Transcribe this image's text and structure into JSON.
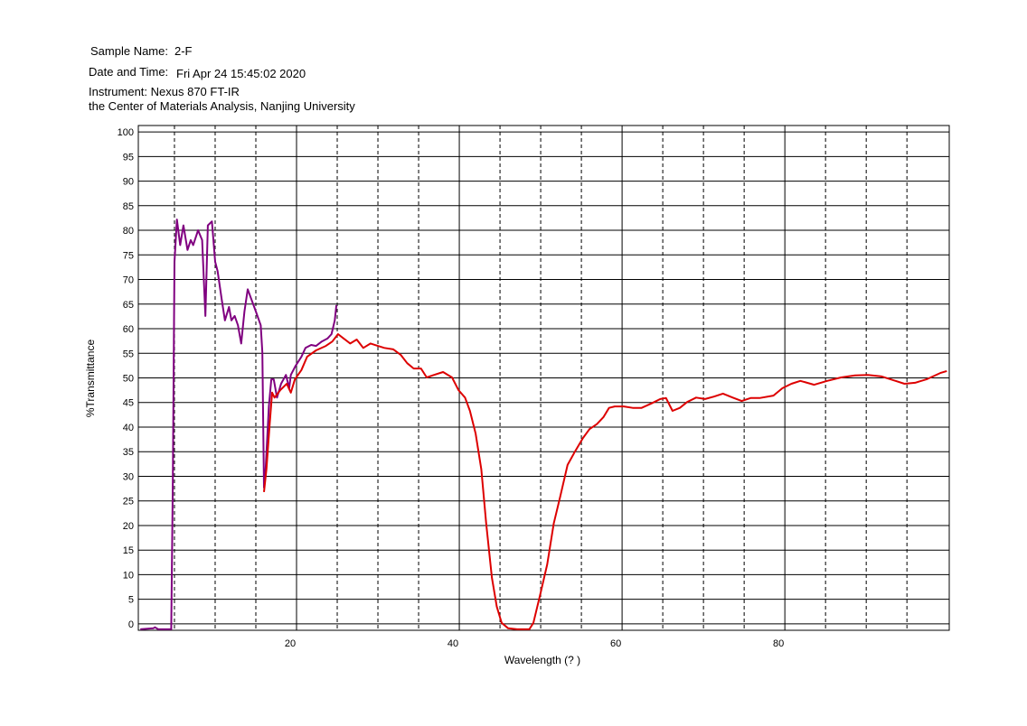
{
  "chart_data": {
    "type": "line",
    "header": {
      "sample_label": "Sample Name:",
      "sample": "2-F",
      "date_label": "Date and Time:",
      "date": "Fri Apr 24 15:45:02 2020",
      "instrument": "Instrument: Nexus 870 FT-IR",
      "institution": "the Center of Materials Analysis, Nanjing University"
    },
    "x_label": "Wavelength (?  )",
    "y_label": "%Transmittance",
    "xlim": [
      0.56,
      100.2
    ],
    "ylim": [
      -1.3,
      101.3
    ],
    "xticks": [
      20,
      40,
      60,
      80
    ],
    "x_minor_ticks": [
      5,
      10,
      15,
      25,
      30,
      35,
      45,
      50,
      55,
      65,
      70,
      75,
      85,
      90,
      95
    ],
    "yticks": [
      0,
      5,
      10,
      15,
      20,
      25,
      30,
      35,
      40,
      45,
      50,
      55,
      60,
      65,
      70,
      75,
      80,
      85,
      90,
      95,
      100
    ],
    "series": [
      {
        "color": "#800080",
        "x": [
          0.8,
          2.4,
          2.6,
          3,
          4.6,
          4.8,
          5,
          5.3,
          5.7,
          6.1,
          6.6,
          7,
          7.3,
          7.9,
          8.4,
          8.8,
          9.1,
          9.6,
          10,
          10.3,
          10.8,
          11.2,
          11.7,
          12,
          12.4,
          12.8,
          13.2,
          13.6,
          14,
          14.4,
          15,
          15.6,
          15.8,
          16,
          16.2,
          16.6,
          16.9,
          17.2,
          17.6,
          18.1,
          18.7,
          19.1,
          19.3,
          19.9,
          20.6,
          21.1,
          21.8,
          22.4,
          23.1,
          23.8,
          24.3,
          24.7,
          24.9
        ],
        "values": [
          -1.1,
          -0.9,
          -0.7,
          -1.1,
          -1.1,
          29.5,
          73.6,
          82.2,
          77,
          81,
          76,
          78,
          77,
          80,
          78,
          62.6,
          81,
          81.8,
          73.6,
          71.7,
          66,
          61.7,
          64.4,
          61.7,
          62.6,
          60.7,
          57,
          63.5,
          68,
          66.2,
          63.5,
          60.7,
          55.2,
          27.7,
          31.4,
          44.2,
          49.7,
          49.7,
          46,
          48.8,
          50.6,
          47.9,
          50.6,
          52.5,
          54.3,
          56.1,
          56.7,
          56.5,
          57.4,
          58,
          58.9,
          61.7,
          64.8
        ]
      },
      {
        "color": "#dd0000",
        "x": [
          16,
          16.3,
          16.7,
          17,
          17.3,
          18,
          18.8,
          19.3,
          19.8,
          20.6,
          21.3,
          22.4,
          23.6,
          24.4,
          25.1,
          25.8,
          26.6,
          27.4,
          28.2,
          29.1,
          30,
          30.8,
          31.9,
          32.8,
          33.6,
          34.4,
          35.3,
          36,
          36.9,
          38,
          39.1,
          39.9,
          40.7,
          41.3,
          42,
          42.7,
          43.3,
          44,
          44.6,
          45.2,
          46,
          47.1,
          48.6,
          49.1,
          49.9,
          50.8,
          51.6,
          52.4,
          53.3,
          54.2,
          55.2,
          56,
          56.9,
          57.7,
          58.4,
          59.1,
          60.2,
          61.3,
          62.4,
          63.6,
          64.7,
          65.4,
          66.2,
          67.1,
          68,
          69.1,
          70.2,
          71.3,
          72.4,
          73.6,
          74.7,
          75.8,
          76.9,
          78.6,
          79.7,
          80.8,
          81.9,
          83.6,
          85.2,
          86.9,
          88.6,
          90.2,
          91.9,
          93.6,
          94.7,
          96,
          97.4,
          99.1,
          99.9
        ],
        "values": [
          26.8,
          31.4,
          40.6,
          47,
          46,
          47.5,
          48.8,
          47,
          49.7,
          51.6,
          54.3,
          55.6,
          56.5,
          57.4,
          58.9,
          58,
          57,
          57.8,
          56.1,
          57,
          56.5,
          56.1,
          55.8,
          54.7,
          53,
          51.9,
          51.9,
          50.1,
          50.6,
          51.2,
          50.1,
          47.5,
          46,
          43.3,
          38.7,
          31.4,
          20.4,
          9.4,
          3.5,
          0.2,
          -0.9,
          -1.1,
          -1.1,
          0.2,
          5.7,
          12.1,
          20.4,
          25.9,
          32.3,
          35,
          37.8,
          39.6,
          40.6,
          42,
          43.9,
          44.2,
          44.2,
          43.9,
          43.9,
          44.8,
          45.7,
          45.9,
          43.3,
          43.9,
          45.1,
          46,
          45.7,
          46.2,
          46.8,
          46,
          45.3,
          45.9,
          45.9,
          46.4,
          47.9,
          48.8,
          49.4,
          48.6,
          49.4,
          50.1,
          50.5,
          50.6,
          50.3,
          49.4,
          48.8,
          49,
          49.7,
          51,
          51.4
        ]
      }
    ]
  }
}
